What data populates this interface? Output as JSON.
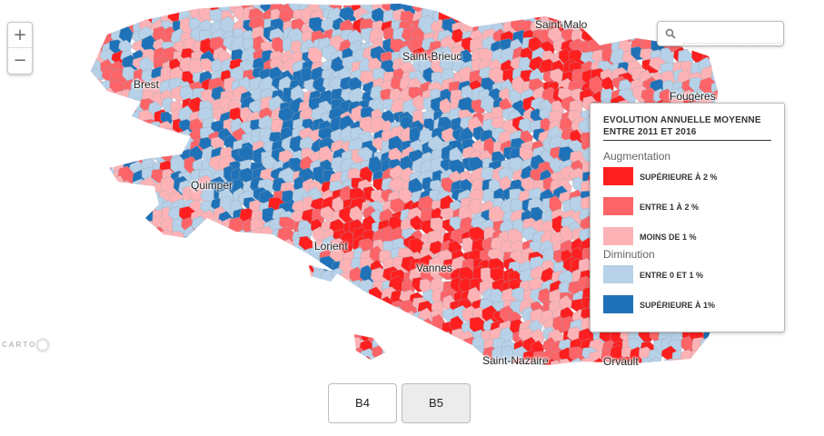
{
  "map": {
    "cities": {
      "saint_malo": "Saint-Malo",
      "saint_brieuc": "Saint-Brieuc",
      "brest": "Brest",
      "fougeres": "Fougères",
      "quimper": "Quimper",
      "lorient": "Lorient",
      "vannes": "Vannes",
      "saint_nazaire": "Saint-Nazaire",
      "orvault": "Orvault"
    },
    "zoom_in_label": "+",
    "zoom_out_label": "−",
    "attribution": "CARTO",
    "colors": {
      "up_gt2": "#ff1f1f",
      "up_1_2": "#fc6468",
      "up_lt1": "#fdb3b6",
      "down_0_1": "#b6d1e8",
      "down_gt1": "#1f72b8",
      "borders": "#9aa3b0"
    }
  },
  "search": {
    "placeholder": "",
    "value": "",
    "icon": "search-icon"
  },
  "legend": {
    "title": "EVOLUTION ANNUELLE MOYENNE ENTRE 2011 ET 2016",
    "groups": [
      {
        "heading": "Augmentation",
        "items": [
          {
            "label": "SUPÉRIEURE À 2 %",
            "color": "#ff1f1f"
          },
          {
            "label": "ENTRE 1 À 2 %",
            "color": "#fc6468"
          },
          {
            "label": "MOINS DE 1 %",
            "color": "#fdb3b6"
          }
        ]
      },
      {
        "heading": "Diminution",
        "items": [
          {
            "label": "ENTRE 0 ET 1 %",
            "color": "#b6d1e8"
          },
          {
            "label": "SUPÉRIEURE À 1%",
            "color": "#1f72b8"
          }
        ]
      }
    ]
  },
  "buttons": [
    {
      "label": "B4",
      "active": false
    },
    {
      "label": "B5",
      "active": true
    }
  ]
}
